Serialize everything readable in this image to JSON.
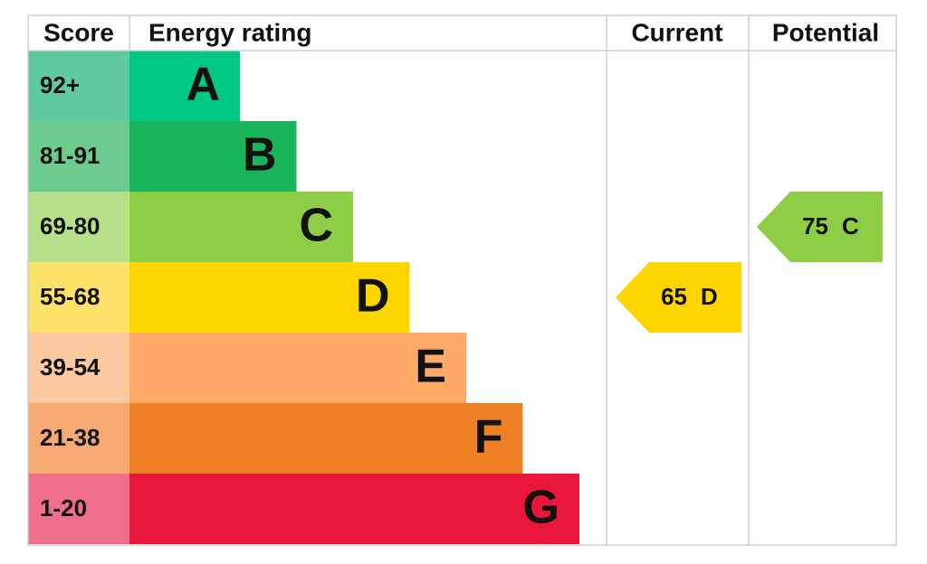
{
  "header": {
    "score": "Score",
    "rating": "Energy rating",
    "current": "Current",
    "potential": "Potential"
  },
  "bands": [
    {
      "score": "92+",
      "letter": "A",
      "color": "#00c781",
      "score_color": "#5fc9a0"
    },
    {
      "score": "81-91",
      "letter": "B",
      "color": "#19b459",
      "score_color": "#6ecb8e"
    },
    {
      "score": "69-80",
      "letter": "C",
      "color": "#8dce46",
      "score_color": "#b6df8a"
    },
    {
      "score": "55-68",
      "letter": "D",
      "color": "#ffd500",
      "score_color": "#ffe26a"
    },
    {
      "score": "39-54",
      "letter": "E",
      "color": "#fcaa65",
      "score_color": "#fdc9a0"
    },
    {
      "score": "21-38",
      "letter": "F",
      "color": "#ef8023",
      "score_color": "#f4aa72"
    },
    {
      "score": "1-20",
      "letter": "G",
      "color": "#e9153b",
      "score_color": "#ef6f8a"
    }
  ],
  "current": {
    "value": 65,
    "letter": "D"
  },
  "potential": {
    "value": 75,
    "letter": "C"
  }
}
